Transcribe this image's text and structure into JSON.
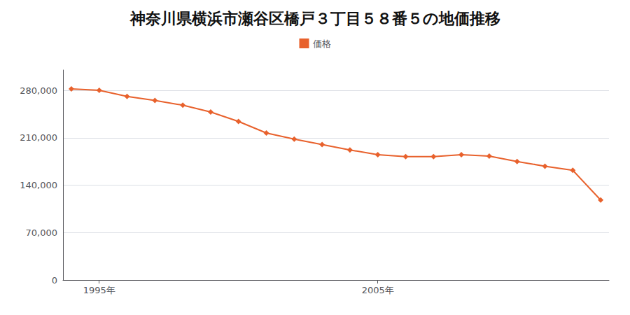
{
  "chart_data": {
    "type": "line",
    "title": "神奈川県横浜市瀬谷区橋戸３丁目５８番５の地価推移",
    "x": [
      1994,
      1995,
      1996,
      1997,
      1998,
      1999,
      2000,
      2001,
      2002,
      2003,
      2004,
      2005,
      2006,
      2007,
      2008,
      2009,
      2010,
      2011,
      2012,
      2013
    ],
    "series": [
      {
        "name": "価格",
        "color": "#e8612c",
        "marker": "diamond",
        "values": [
          282000,
          280000,
          271000,
          265000,
          258000,
          248000,
          234000,
          217000,
          208000,
          200000,
          192000,
          185000,
          182000,
          182000,
          185000,
          183000,
          175000,
          168000,
          162000,
          118000
        ]
      }
    ],
    "xlim": [
      1993.7,
      2013.3
    ],
    "xticks": [
      {
        "value": 1995,
        "label": "1995年"
      },
      {
        "value": 2005,
        "label": "2005年"
      }
    ],
    "ylim": [
      0,
      310000
    ],
    "yticks": [
      0,
      {
        "value": 70000,
        "label": "70,000"
      },
      {
        "value": 140000,
        "label": "140,000"
      },
      {
        "value": 210000,
        "label": "210,000"
      },
      {
        "value": 280000,
        "label": "280,000"
      }
    ],
    "grid": true,
    "legend": "top"
  }
}
